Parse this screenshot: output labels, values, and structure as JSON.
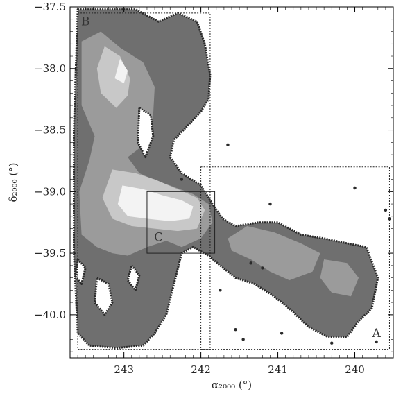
{
  "chart_data": {
    "type": "map",
    "title": "",
    "xlabel": "α₂₀₀₀ (°)",
    "ylabel": "δ₂₀₀₀ (°)",
    "xlim": [
      243.7,
      239.5
    ],
    "ylim": [
      -40.35,
      -37.5
    ],
    "x_ticks": [
      243,
      242,
      241,
      240
    ],
    "x_tick_labels": [
      "243",
      "242",
      "241",
      "240"
    ],
    "y_ticks": [
      -37.5,
      -38.0,
      -38.5,
      -39.0,
      -39.5,
      -40.0
    ],
    "y_tick_labels": [
      "−37.5",
      "−38.0",
      "−38.5",
      "−39.0",
      "−39.5",
      "−40.0"
    ],
    "colors": {
      "level1": "#6f6f6f",
      "level2": "#9b9b9b",
      "level3": "#c8c8c8",
      "level4": "#f3f3f3",
      "edge": "#2a2a2a"
    },
    "levels": [
      {
        "name": "level1",
        "polygons": [
          [
            [
              243.6,
              -37.52
            ],
            [
              242.85,
              -37.52
            ],
            [
              242.55,
              -37.62
            ],
            [
              242.3,
              -37.55
            ],
            [
              242.05,
              -37.62
            ],
            [
              241.95,
              -37.8
            ],
            [
              241.88,
              -38.05
            ],
            [
              241.9,
              -38.25
            ],
            [
              242.0,
              -38.35
            ],
            [
              242.15,
              -38.45
            ],
            [
              242.35,
              -38.58
            ],
            [
              242.4,
              -38.72
            ],
            [
              242.25,
              -38.85
            ],
            [
              242.0,
              -38.95
            ],
            [
              241.85,
              -39.1
            ],
            [
              241.72,
              -39.22
            ],
            [
              241.55,
              -39.28
            ],
            [
              241.25,
              -39.25
            ],
            [
              241.0,
              -39.25
            ],
            [
              240.7,
              -39.35
            ],
            [
              240.4,
              -39.38
            ],
            [
              240.1,
              -39.42
            ],
            [
              239.85,
              -39.45
            ],
            [
              239.7,
              -39.7
            ],
            [
              239.78,
              -39.95
            ],
            [
              239.95,
              -40.05
            ],
            [
              240.1,
              -40.18
            ],
            [
              240.35,
              -40.18
            ],
            [
              240.6,
              -40.1
            ],
            [
              240.85,
              -39.95
            ],
            [
              241.05,
              -39.85
            ],
            [
              241.3,
              -39.75
            ],
            [
              241.55,
              -39.7
            ],
            [
              241.75,
              -39.6
            ],
            [
              241.9,
              -39.52
            ],
            [
              242.1,
              -39.45
            ],
            [
              242.25,
              -39.5
            ],
            [
              242.35,
              -39.75
            ],
            [
              242.45,
              -40.0
            ],
            [
              242.6,
              -40.15
            ],
            [
              242.75,
              -40.25
            ],
            [
              243.1,
              -40.27
            ],
            [
              243.45,
              -40.25
            ],
            [
              243.6,
              -40.15
            ],
            [
              243.65,
              -39.5
            ],
            [
              243.65,
              -38.5
            ]
          ]
        ]
      },
      {
        "name": "level2",
        "polygons": [
          [
            [
              243.55,
              -37.78
            ],
            [
              243.3,
              -37.7
            ],
            [
              243.05,
              -37.83
            ],
            [
              242.75,
              -37.95
            ],
            [
              242.6,
              -38.15
            ],
            [
              242.62,
              -38.38
            ],
            [
              242.7,
              -38.6
            ],
            [
              242.95,
              -38.72
            ],
            [
              242.8,
              -38.85
            ],
            [
              242.55,
              -38.92
            ],
            [
              242.4,
              -38.95
            ],
            [
              242.1,
              -39.02
            ],
            [
              241.9,
              -39.1
            ],
            [
              241.85,
              -39.25
            ],
            [
              242.0,
              -39.38
            ],
            [
              242.25,
              -39.45
            ],
            [
              242.45,
              -39.4
            ],
            [
              242.7,
              -39.45
            ],
            [
              242.95,
              -39.52
            ],
            [
              243.15,
              -39.5
            ],
            [
              243.35,
              -39.45
            ],
            [
              243.55,
              -39.35
            ],
            [
              243.58,
              -39.0
            ],
            [
              243.45,
              -38.75
            ],
            [
              243.38,
              -38.55
            ],
            [
              243.55,
              -38.3
            ]
          ],
          [
            [
              241.4,
              -39.28
            ],
            [
              241.05,
              -39.33
            ],
            [
              240.7,
              -39.42
            ],
            [
              240.45,
              -39.5
            ],
            [
              240.55,
              -39.65
            ],
            [
              240.85,
              -39.72
            ],
            [
              241.1,
              -39.65
            ],
            [
              241.35,
              -39.55
            ],
            [
              241.6,
              -39.48
            ],
            [
              241.65,
              -39.38
            ]
          ],
          [
            [
              240.4,
              -39.55
            ],
            [
              240.1,
              -39.58
            ],
            [
              239.95,
              -39.7
            ],
            [
              240.05,
              -39.85
            ],
            [
              240.3,
              -39.82
            ],
            [
              240.45,
              -39.7
            ]
          ]
        ]
      },
      {
        "name": "level3",
        "polygons": [
          [
            [
              243.25,
              -37.82
            ],
            [
              243.05,
              -37.9
            ],
            [
              242.92,
              -38.08
            ],
            [
              242.95,
              -38.22
            ],
            [
              243.1,
              -38.32
            ],
            [
              243.3,
              -38.2
            ],
            [
              243.35,
              -38.0
            ]
          ],
          [
            [
              243.15,
              -38.82
            ],
            [
              242.85,
              -38.85
            ],
            [
              242.6,
              -38.9
            ],
            [
              242.3,
              -38.98
            ],
            [
              242.05,
              -39.05
            ],
            [
              241.95,
              -39.15
            ],
            [
              242.05,
              -39.3
            ],
            [
              242.3,
              -39.32
            ],
            [
              242.6,
              -39.3
            ],
            [
              242.9,
              -39.28
            ],
            [
              243.15,
              -39.22
            ],
            [
              243.28,
              -39.05
            ]
          ]
        ]
      },
      {
        "name": "level4",
        "polygons": [
          [
            [
              243.05,
              -37.92
            ],
            [
              242.95,
              -38.02
            ],
            [
              243.0,
              -38.12
            ],
            [
              243.12,
              -38.08
            ]
          ],
          [
            [
              243.02,
              -38.95
            ],
            [
              242.75,
              -38.98
            ],
            [
              242.5,
              -39.03
            ],
            [
              242.25,
              -39.07
            ],
            [
              242.1,
              -39.12
            ],
            [
              242.15,
              -39.22
            ],
            [
              242.4,
              -39.24
            ],
            [
              242.7,
              -39.22
            ],
            [
              242.95,
              -39.2
            ],
            [
              243.08,
              -39.1
            ]
          ]
        ]
      },
      {
        "name": "holes",
        "polygons": [
          [
            [
              242.8,
              -38.32
            ],
            [
              242.65,
              -38.38
            ],
            [
              242.62,
              -38.55
            ],
            [
              242.72,
              -38.72
            ],
            [
              242.82,
              -38.6
            ]
          ],
          [
            [
              243.35,
              -39.7
            ],
            [
              243.2,
              -39.75
            ],
            [
              243.15,
              -39.9
            ],
            [
              243.25,
              -40.0
            ],
            [
              243.38,
              -39.9
            ]
          ],
          [
            [
              243.6,
              -39.55
            ],
            [
              243.5,
              -39.62
            ],
            [
              243.55,
              -39.75
            ],
            [
              243.62,
              -39.7
            ]
          ],
          [
            [
              242.9,
              -39.6
            ],
            [
              242.8,
              -39.68
            ],
            [
              242.85,
              -39.8
            ],
            [
              242.95,
              -39.72
            ]
          ]
        ]
      }
    ],
    "scatter_points": [
      [
        241.65,
        -38.62
      ],
      [
        241.35,
        -39.58
      ],
      [
        241.2,
        -39.62
      ],
      [
        240.95,
        -40.15
      ],
      [
        241.45,
        -40.2
      ],
      [
        241.55,
        -40.12
      ],
      [
        240.3,
        -40.23
      ],
      [
        239.55,
        -39.22
      ],
      [
        239.6,
        -39.15
      ],
      [
        240.0,
        -38.97
      ],
      [
        239.72,
        -40.22
      ],
      [
        241.1,
        -39.1
      ],
      [
        241.75,
        -39.8
      ],
      [
        242.25,
        -38.9
      ]
    ],
    "regions": [
      {
        "label": "A",
        "x": [
          242.0,
          239.55
        ],
        "y": [
          -38.8,
          -40.28
        ],
        "style": "dotted",
        "label_at": [
          239.72,
          -40.18
        ]
      },
      {
        "label": "B",
        "x": [
          243.6,
          241.88
        ],
        "y": [
          -37.55,
          -40.28
        ],
        "style": "dotted",
        "label_at": [
          243.5,
          -37.65
        ]
      },
      {
        "label": "C",
        "x": [
          242.7,
          241.82
        ],
        "y": [
          -39.0,
          -39.5
        ],
        "style": "solid",
        "label_at": [
          242.55,
          -39.4
        ]
      }
    ]
  }
}
